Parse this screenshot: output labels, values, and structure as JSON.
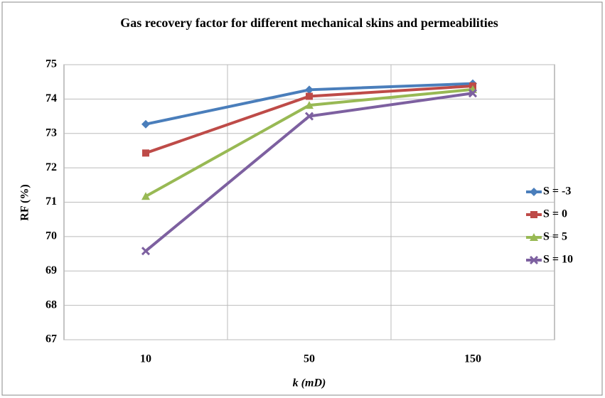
{
  "chart_data": {
    "type": "line",
    "title": "Gas recovery factor for different mechanical skins and permeabilities",
    "x_label": "k (mD)",
    "y_label": "RF (%)",
    "categories": [
      "10",
      "50",
      "150"
    ],
    "series": [
      {
        "name": "S = -3",
        "color": "#4a7ebb",
        "marker": "diamond",
        "values": [
          73.27,
          74.27,
          74.45
        ]
      },
      {
        "name": "S = 0",
        "color": "#be4b48",
        "marker": "square",
        "values": [
          72.43,
          74.08,
          74.38
        ]
      },
      {
        "name": "S = 5",
        "color": "#98b954",
        "marker": "triangle",
        "values": [
          71.17,
          73.82,
          74.28
        ]
      },
      {
        "name": "S = 10",
        "color": "#7d60a0",
        "marker": "x",
        "values": [
          69.58,
          73.5,
          74.17
        ]
      }
    ],
    "ylim": [
      67,
      75
    ],
    "yticks": [
      67,
      68,
      69,
      70,
      71,
      72,
      73,
      74,
      75
    ],
    "grid": true,
    "legend": "right"
  }
}
